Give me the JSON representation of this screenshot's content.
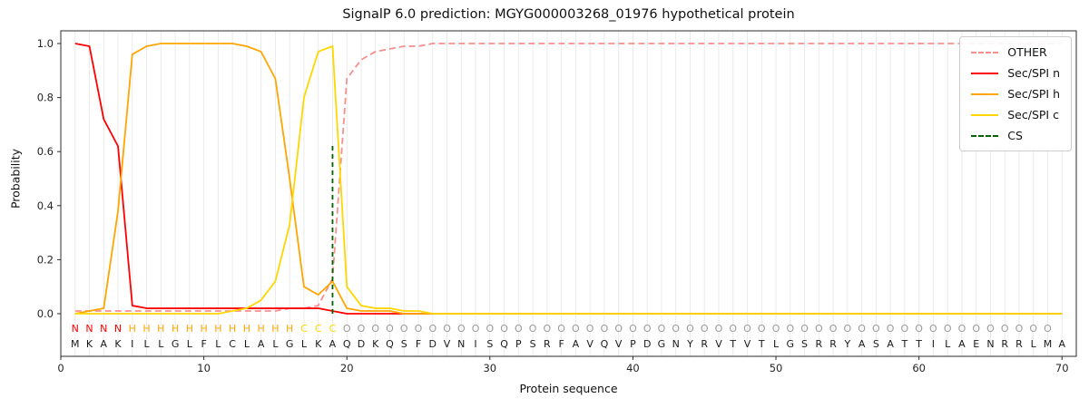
{
  "chart_data": {
    "type": "line",
    "title": "SignalP 6.0 prediction: MGYG000003268_01976 hypothetical protein",
    "xlabel": "Protein sequence",
    "ylabel": "Probability",
    "xlim": [
      0,
      71
    ],
    "ylim": [
      0,
      1.05
    ],
    "xticks": [
      0,
      10,
      20,
      30,
      40,
      50,
      60,
      70
    ],
    "yticks": [
      "0.0",
      "0.2",
      "0.4",
      "0.6",
      "0.8",
      "1.0"
    ],
    "grid": "light vertical gridline at every residue position",
    "legend_position": "upper right",
    "sequence": "MKAKILLGLFLCLALGLKAQDKQSFDVNISQPSRFAVQVPDGNYRVTVTLGSRRYASATTILAENRRLMA",
    "residue_labels": "NNNNHHHHHHHHHHHHCCCOOOOOOOOOOOOOOOOOOOOOOOOOOOOOOOOOOOOOOOOOOOOOOOOOO",
    "label_colors": {
      "N": "#ff0000",
      "H": "#ffa500",
      "C": "#ffd700",
      "O": "#999999"
    },
    "series": [
      {
        "name": "OTHER",
        "color": "#f78f8f",
        "style": "dashed",
        "values": [
          0.01,
          0.01,
          0.01,
          0.01,
          0.01,
          0.01,
          0.01,
          0.01,
          0.01,
          0.01,
          0.01,
          0.01,
          0.01,
          0.01,
          0.01,
          0.02,
          0.02,
          0.03,
          0.13,
          0.87,
          0.94,
          0.97,
          0.98,
          0.99,
          0.99,
          1.0,
          1.0,
          1.0,
          1.0,
          1.0,
          1.0,
          1.0,
          1.0,
          1.0,
          1.0,
          1.0,
          1.0,
          1.0,
          1.0,
          1.0,
          1.0,
          1.0,
          1.0,
          1.0,
          1.0,
          1.0,
          1.0,
          1.0,
          1.0,
          1.0,
          1.0,
          1.0,
          1.0,
          1.0,
          1.0,
          1.0,
          1.0,
          1.0,
          1.0,
          1.0,
          1.0,
          1.0,
          1.0,
          1.0,
          1.0,
          1.0,
          1.0,
          1.0,
          1.0,
          1.0
        ]
      },
      {
        "name": "Sec/SPI n",
        "color": "#ff0000",
        "style": "solid",
        "values": [
          1.0,
          0.99,
          0.72,
          0.62,
          0.03,
          0.02,
          0.02,
          0.02,
          0.02,
          0.02,
          0.02,
          0.02,
          0.02,
          0.02,
          0.02,
          0.02,
          0.02,
          0.02,
          0.01,
          0.0,
          0.0,
          0.0,
          0.0,
          0.0,
          0.0,
          0.0,
          0.0,
          0.0,
          0.0,
          0.0,
          0.0,
          0.0,
          0.0,
          0.0,
          0.0,
          0.0,
          0.0,
          0.0,
          0.0,
          0.0,
          0.0,
          0.0,
          0.0,
          0.0,
          0.0,
          0.0,
          0.0,
          0.0,
          0.0,
          0.0,
          0.0,
          0.0,
          0.0,
          0.0,
          0.0,
          0.0,
          0.0,
          0.0,
          0.0,
          0.0,
          0.0,
          0.0,
          0.0,
          0.0,
          0.0,
          0.0,
          0.0,
          0.0,
          0.0,
          0.0
        ]
      },
      {
        "name": "Sec/SPI h",
        "color": "#ffa500",
        "style": "solid",
        "values": [
          0.0,
          0.01,
          0.02,
          0.38,
          0.96,
          0.99,
          1.0,
          1.0,
          1.0,
          1.0,
          1.0,
          1.0,
          0.99,
          0.97,
          0.87,
          0.5,
          0.1,
          0.07,
          0.12,
          0.02,
          0.01,
          0.01,
          0.01,
          0.0,
          0.0,
          0.0,
          0.0,
          0.0,
          0.0,
          0.0,
          0.0,
          0.0,
          0.0,
          0.0,
          0.0,
          0.0,
          0.0,
          0.0,
          0.0,
          0.0,
          0.0,
          0.0,
          0.0,
          0.0,
          0.0,
          0.0,
          0.0,
          0.0,
          0.0,
          0.0,
          0.0,
          0.0,
          0.0,
          0.0,
          0.0,
          0.0,
          0.0,
          0.0,
          0.0,
          0.0,
          0.0,
          0.0,
          0.0,
          0.0,
          0.0,
          0.0,
          0.0,
          0.0,
          0.0,
          0.0
        ]
      },
      {
        "name": "Sec/SPI c",
        "color": "#ffd700",
        "style": "solid",
        "values": [
          0.0,
          0.0,
          0.0,
          0.0,
          0.0,
          0.0,
          0.0,
          0.0,
          0.0,
          0.0,
          0.0,
          0.01,
          0.02,
          0.05,
          0.12,
          0.33,
          0.8,
          0.97,
          0.99,
          0.1,
          0.03,
          0.02,
          0.02,
          0.01,
          0.01,
          0.0,
          0.0,
          0.0,
          0.0,
          0.0,
          0.0,
          0.0,
          0.0,
          0.0,
          0.0,
          0.0,
          0.0,
          0.0,
          0.0,
          0.0,
          0.0,
          0.0,
          0.0,
          0.0,
          0.0,
          0.0,
          0.0,
          0.0,
          0.0,
          0.0,
          0.0,
          0.0,
          0.0,
          0.0,
          0.0,
          0.0,
          0.0,
          0.0,
          0.0,
          0.0,
          0.0,
          0.0,
          0.0,
          0.0,
          0.0,
          0.0,
          0.0,
          0.0,
          0.0,
          0.0
        ]
      },
      {
        "name": "CS",
        "color": "#006400",
        "style": "dashed",
        "type": "vline",
        "x": 19,
        "height": 0.63
      }
    ]
  }
}
